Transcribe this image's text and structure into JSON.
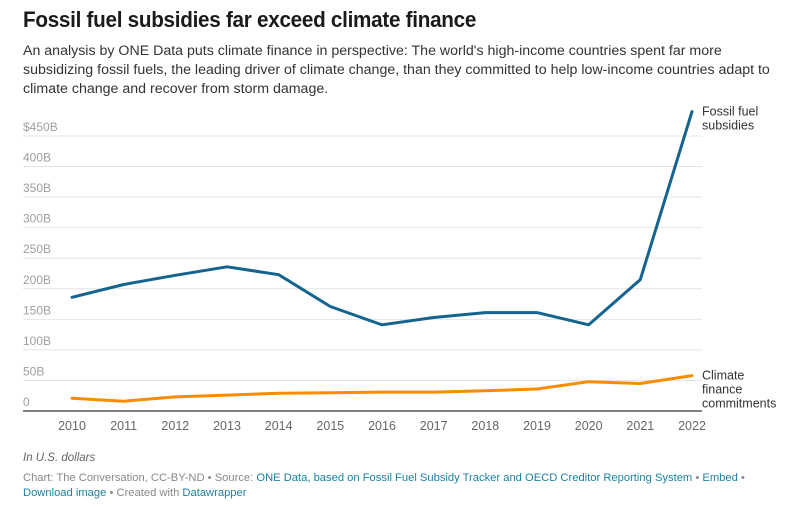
{
  "header": {
    "title": "Fossil fuel subsidies far exceed climate finance",
    "subtitle": "An analysis by ONE Data puts climate finance in perspective: The world's high-income countries spent far more subsidizing fossil fuels, the leading driver of climate change, than they committed to help low-income countries adapt to climate change and recover from storm damage."
  },
  "chart_data": {
    "type": "line",
    "title": "Fossil fuel subsidies far exceed climate finance",
    "xlabel": "",
    "ylabel": "In U.S. dollars",
    "x": [
      2010,
      2011,
      2012,
      2013,
      2014,
      2015,
      2016,
      2017,
      2018,
      2019,
      2020,
      2021,
      2022
    ],
    "x_tick_labels": [
      "2010",
      "2011",
      "2012",
      "2013",
      "2014",
      "2015",
      "2016",
      "2017",
      "2018",
      "2019",
      "2020",
      "2021",
      "2022"
    ],
    "ylim": [
      0,
      450
    ],
    "y_ticks": [
      0,
      50,
      100,
      150,
      200,
      250,
      300,
      350,
      400,
      450
    ],
    "y_tick_labels": [
      "0",
      "50B",
      "100B",
      "150B",
      "200B",
      "250B",
      "300B",
      "350B",
      "400B",
      "$450B"
    ],
    "grid": true,
    "legend": "inline labels at line ends (right)",
    "series": [
      {
        "name": "Fossil fuel subsidies",
        "label_lines": [
          "Fossil fuel",
          "subsidies"
        ],
        "color": "#15638f",
        "values": [
          186,
          207,
          222,
          236,
          223,
          171,
          141,
          153,
          161,
          161,
          141,
          215,
          490
        ]
      },
      {
        "name": "Climate finance commitments",
        "label_lines": [
          "Climate",
          "finance",
          "commitments"
        ],
        "color": "#fa8c00",
        "values": [
          21,
          16,
          23,
          26,
          29,
          30,
          31,
          31,
          33,
          36,
          48,
          45,
          58
        ]
      }
    ]
  },
  "notes": {
    "unit_note": "In U.S. dollars"
  },
  "footer": {
    "chart_credit": "Chart: The Conversation, CC-BY-ND",
    "separator": " • ",
    "source_prefix": "Source: ",
    "source_link": "ONE Data, based on Fossil Fuel Subsidy Tracker and OECD Creditor Reporting System",
    "embed_link": "Embed",
    "download_link": "Download image",
    "created_prefix": "Created with ",
    "datawrapper_link": "Datawrapper"
  },
  "colors": {
    "link": "#1d81a2",
    "gridline": "#e4e4e4",
    "baseline": "#333333"
  }
}
